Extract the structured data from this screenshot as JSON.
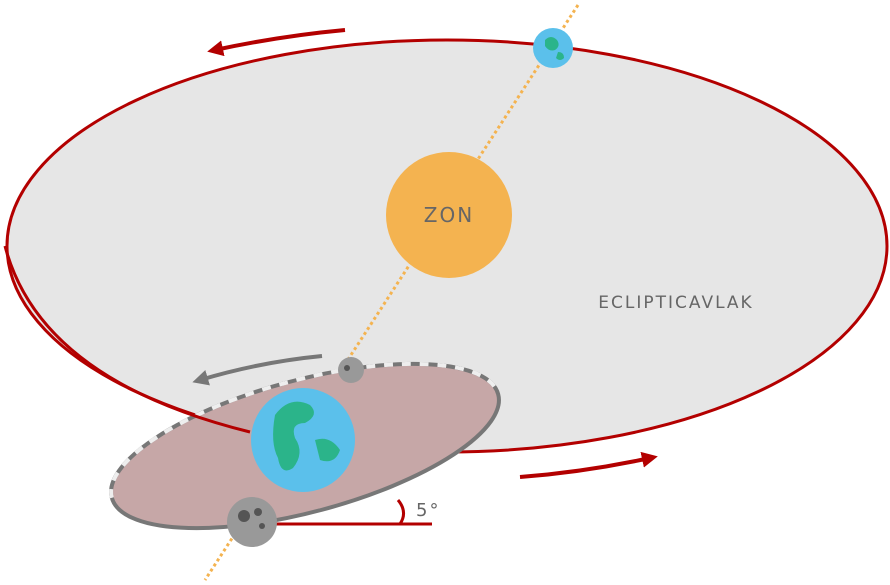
{
  "labels": {
    "sun": "ZON",
    "plane": "ECLIPTICAVLAK",
    "angle": "5°"
  }
}
